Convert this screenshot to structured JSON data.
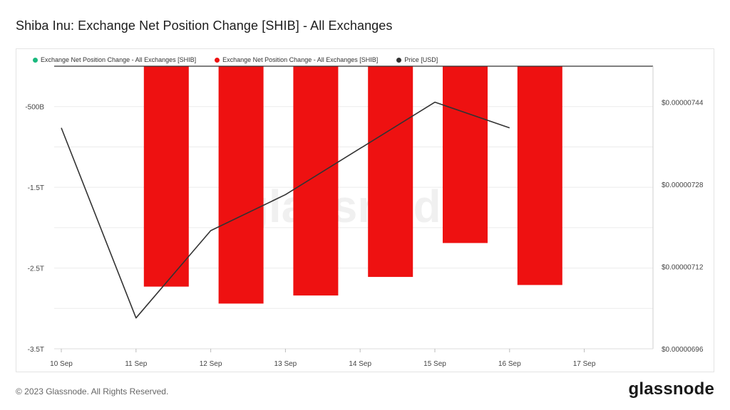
{
  "title": "Shiba Inu: Exchange Net Position Change [SHIB] - All Exchanges",
  "footer": "© 2023 Glassnode. All Rights Reserved.",
  "brand": "glassnode",
  "watermark": "glassnode",
  "legend": [
    {
      "label": "Exchange Net Position Change - All Exchanges [SHIB]",
      "color": "#1ab97e"
    },
    {
      "label": "Exchange Net Position Change - All Exchanges [SHIB]",
      "color": "#ee1111"
    },
    {
      "label": "Price [USD]",
      "color": "#333333"
    }
  ],
  "chart_data": {
    "type": "bar",
    "categories": [
      "10 Sep",
      "11 Sep",
      "12 Sep",
      "13 Sep",
      "14 Sep",
      "15 Sep",
      "16 Sep",
      "17 Sep"
    ],
    "series": [
      {
        "axis": "left",
        "color": "#ee1111",
        "values": [
          null,
          -2.73,
          -2.94,
          -2.84,
          -2.61,
          -2.19,
          -2.71,
          null
        ]
      },
      {
        "axis": "right",
        "type": "line",
        "color": "#333333",
        "values": [
          7.39e-06,
          7.02e-06,
          7.19e-06,
          7.26e-06,
          7.35e-06,
          7.44e-06,
          7.39e-06,
          null
        ]
      }
    ],
    "ylim_left": [
      -3.5,
      0.0
    ],
    "yticks_left": [
      -0.5,
      -1.5,
      -2.5,
      -3.5
    ],
    "yticklabels_left": [
      "-500B",
      "-1.5T",
      "-2.5T",
      "-3.5T"
    ],
    "ylim_right": [
      6.96e-06,
      7.51e-06
    ],
    "yticks_right": [
      7.44e-06,
      7.28e-06,
      7.12e-06,
      6.96e-06
    ],
    "yticklabels_right": [
      "$0.00000744",
      "$0.00000728",
      "$0.00000712",
      "$0.00000696"
    ],
    "grid": true,
    "legend_position": "top-left"
  }
}
